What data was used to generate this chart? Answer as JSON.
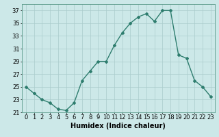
{
  "x": [
    0,
    1,
    2,
    3,
    4,
    5,
    6,
    7,
    8,
    9,
    10,
    11,
    12,
    13,
    14,
    15,
    16,
    17,
    18,
    19,
    20,
    21,
    22,
    23
  ],
  "y": [
    25,
    24,
    23,
    22.5,
    21.5,
    21.3,
    22.5,
    26,
    27.5,
    29,
    29,
    31.5,
    33.5,
    35,
    36,
    36.5,
    35.3,
    37,
    37,
    30,
    29.5,
    26,
    25,
    23.5
  ],
  "line_color": "#2e7d6e",
  "marker": "D",
  "marker_size": 2,
  "bg_color": "#cce8e8",
  "grid_color": "#aacccc",
  "xlabel": "Humidex (Indice chaleur)",
  "xlim": [
    -0.5,
    23.5
  ],
  "ylim": [
    21,
    38
  ],
  "yticks": [
    21,
    23,
    25,
    27,
    29,
    31,
    33,
    35,
    37
  ],
  "xticks": [
    0,
    1,
    2,
    3,
    4,
    5,
    6,
    7,
    8,
    9,
    10,
    11,
    12,
    13,
    14,
    15,
    16,
    17,
    18,
    19,
    20,
    21,
    22,
    23
  ],
  "xlabel_fontsize": 7,
  "tick_fontsize": 6,
  "line_width": 1.0
}
